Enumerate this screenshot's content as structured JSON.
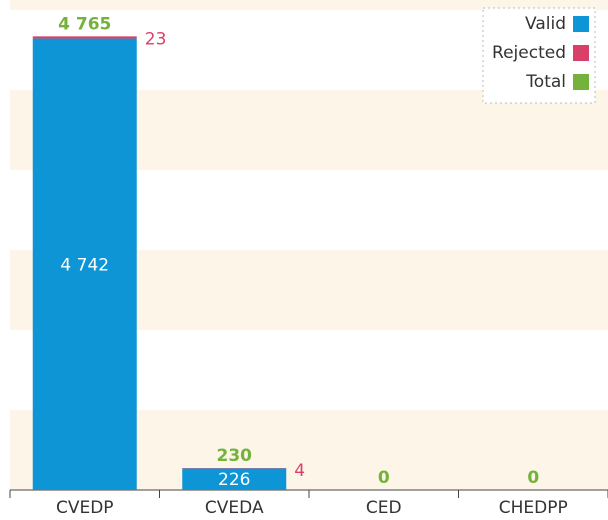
{
  "chart_data": {
    "type": "stacked-bar",
    "categories": [
      "CVEDP",
      "CVEDA",
      "CED",
      "CHEDPP"
    ],
    "series": [
      {
        "name": "Valid",
        "color": "#0e95d6",
        "values": [
          4742,
          226,
          0,
          0
        ],
        "value_labels": [
          "4 742",
          "226",
          "0",
          "0"
        ]
      },
      {
        "name": "Rejected",
        "color": "#d8406a",
        "values": [
          23,
          4,
          0,
          0
        ]
      },
      {
        "name": "Total",
        "color": "#73b33b",
        "values": [
          4765,
          230,
          0,
          0
        ],
        "value_labels": [
          "4 765",
          "230",
          "0",
          "0"
        ]
      }
    ],
    "ylim": [
      0,
      5000
    ],
    "legend": "top-right"
  }
}
